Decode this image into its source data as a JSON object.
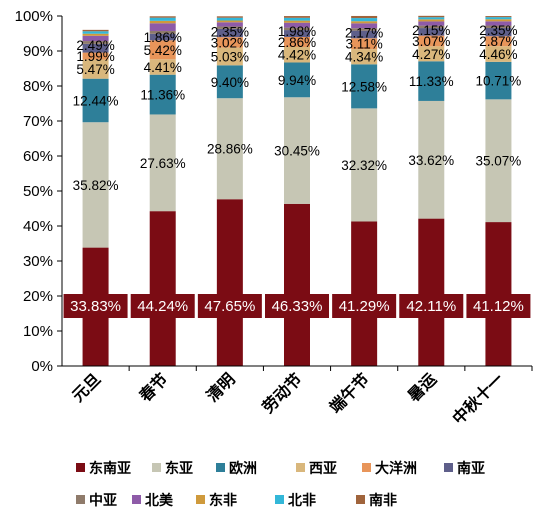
{
  "chart_data": {
    "type": "bar",
    "stacked": true,
    "categories": [
      "元旦",
      "春节",
      "清明",
      "劳动节",
      "端午节",
      "暑运",
      "中秋十一"
    ],
    "ylim": [
      0,
      100
    ],
    "yticks": [
      "0%",
      "10%",
      "20%",
      "30%",
      "40%",
      "50%",
      "60%",
      "70%",
      "80%",
      "90%",
      "100%"
    ],
    "grid": false,
    "legend_position": "bottom",
    "series": [
      {
        "name": "东南亚",
        "color": "#7b0c14",
        "values": [
          33.83,
          44.24,
          47.65,
          46.33,
          41.29,
          42.11,
          41.12
        ],
        "labels": [
          "33.83%",
          "44.24%",
          "47.65%",
          "46.33%",
          "41.29%",
          "42.11%",
          "41.12%"
        ]
      },
      {
        "name": "东亚",
        "color": "#c6c6b4",
        "values": [
          35.82,
          27.63,
          28.86,
          30.45,
          32.32,
          33.62,
          35.07
        ],
        "labels": [
          "35.82%",
          "27.63%",
          "28.86%",
          "30.45%",
          "32.32%",
          "33.62%",
          "35.07%"
        ]
      },
      {
        "name": "欧洲",
        "color": "#2e7f99",
        "values": [
          12.44,
          11.36,
          9.4,
          9.94,
          12.58,
          11.33,
          10.71
        ],
        "labels": [
          "12.44%",
          "11.36%",
          "9.40%",
          "9.94%",
          "12.58%",
          "11.33%",
          "10.71%"
        ]
      },
      {
        "name": "西亚",
        "color": "#d9b77c",
        "values": [
          5.47,
          4.41,
          5.03,
          4.42,
          4.34,
          4.27,
          4.46
        ],
        "labels": [
          "5.47%",
          "4.41%",
          "5.03%",
          "4.42%",
          "4.34%",
          "4.27%",
          "4.46%"
        ]
      },
      {
        "name": "大洋洲",
        "color": "#e8955a",
        "values": [
          1.99,
          5.42,
          3.02,
          2.86,
          3.11,
          3.07,
          2.87
        ],
        "labels": [
          "1.99%",
          "5.42%",
          "3.02%",
          "2.86%",
          "3.11%",
          "3.07%",
          "2.87%"
        ]
      },
      {
        "name": "南亚",
        "color": "#5e5f8a",
        "values": [
          2.49,
          1.86,
          2.35,
          1.98,
          2.17,
          2.15,
          2.35
        ],
        "labels": [
          "2.49%",
          "1.86%",
          "2.35%",
          "1.98%",
          "2.17%",
          "2.15%",
          "2.35%"
        ]
      },
      {
        "name": "中亚",
        "color": "#8f7b6b",
        "values": [
          0.8,
          0.8,
          0.7,
          0.7,
          0.7,
          0.7,
          0.7
        ],
        "labels": []
      },
      {
        "name": "北美",
        "color": "#8e5ba8",
        "values": [
          1.5,
          2.2,
          1.2,
          1.4,
          1.4,
          1.2,
          1.2
        ],
        "labels": []
      },
      {
        "name": "东非",
        "color": "#cf9a3c",
        "values": [
          0.6,
          0.7,
          0.5,
          0.6,
          0.6,
          0.6,
          0.6
        ],
        "labels": []
      },
      {
        "name": "北非",
        "color": "#33b7d8",
        "values": [
          0.7,
          0.9,
          0.8,
          0.8,
          0.9,
          0.6,
          0.6
        ],
        "labels": []
      },
      {
        "name": "南非",
        "color": "#a0643c",
        "values": [
          0.4,
          0.4,
          0.4,
          0.5,
          0.6,
          0.4,
          0.3
        ],
        "labels": []
      }
    ]
  }
}
